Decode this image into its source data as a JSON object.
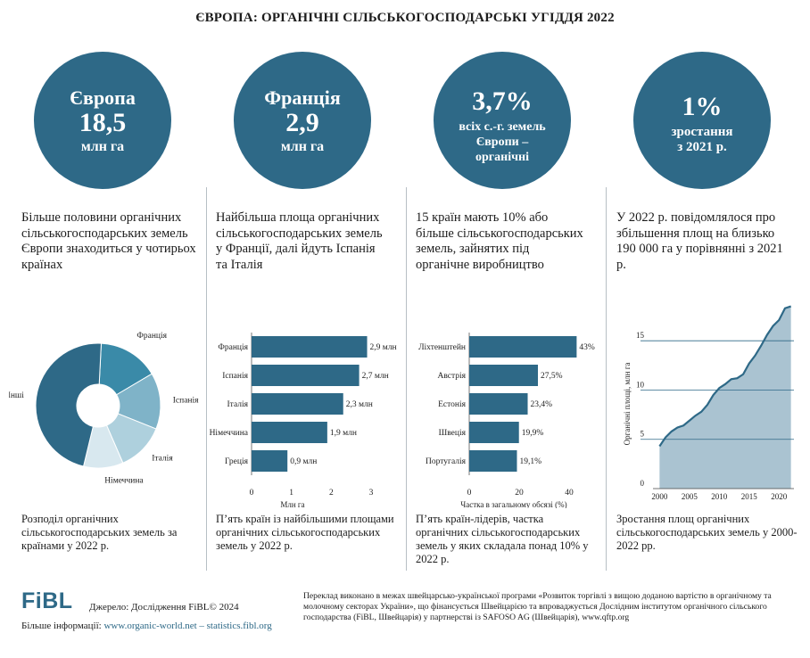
{
  "title": "ЄВРОПА: ОРГАНІЧНІ СІЛЬСЬКОГОСПОДАРСЬКІ УГІДДЯ 2022",
  "panels": [
    {
      "circle": {
        "l1": "Європа",
        "l2": "18,5",
        "l3": "млн га"
      },
      "desc": "Більше половини органічних сільськогосподарських земель Європи знаходиться у чотирьох країнах",
      "caption": "Розподіл органічних сільськогосподарських земель за країнами у 2022 р."
    },
    {
      "circle": {
        "l1": "Франція",
        "l2": "2,9",
        "l3": "млн га"
      },
      "desc": "Найбільша площа органічних сільськогосподарських земель у Франції, далі йдуть Іспанія та Італія",
      "caption": "П’ять країн із найбільшими площами органічних сільськогосподарських земель у 2022 р."
    },
    {
      "circle": {
        "l1": "3,7%",
        "l2": "всіх с.-г. земель",
        "l3": "Європи –",
        "l4": "органічні"
      },
      "desc": "15 країн мають 10% або більше сільськогосподарських земель, зайнятих під органічне виробництво",
      "caption": "П’ять країн-лідерів, частка органічних сільськогосподарських земель у яких складала понад 10% у 2022 р."
    },
    {
      "circle": {
        "l1": "1%",
        "l2": "зростання",
        "l3": "з 2021 р."
      },
      "desc": "У 2022 р. повідомлялося про збільшення площ на близько 190 000 га у порівнянні з 2021 р.",
      "caption": "Зростання площ органічних сільськогосподарських земель у 2000-2022 рр."
    }
  ],
  "chart_data": [
    {
      "type": "pie",
      "title": "Розподіл органічних сільськогосподарських земель за країнами у 2022 р.",
      "labels": [
        "Франція",
        "Іспанія",
        "Італія",
        "Німеччина",
        "Інші"
      ],
      "values": [
        2.9,
        2.7,
        2.3,
        1.9,
        8.7
      ],
      "colors": [
        "#3a8aa8",
        "#7fb3c8",
        "#aed0dd",
        "#d8e8ef",
        "#2e6987"
      ]
    },
    {
      "type": "bar",
      "orientation": "horizontal",
      "categories": [
        "Франція",
        "Іспанія",
        "Італія",
        "Німеччина",
        "Греція"
      ],
      "values": [
        2.9,
        2.7,
        2.3,
        1.9,
        0.9
      ],
      "value_labels": [
        "2,9 млн",
        "2,7 млн",
        "2,3 млн",
        "1,9 млн",
        "0,9 млн"
      ],
      "xlabel": "Млн га",
      "xlim": [
        0,
        3
      ],
      "ticks": [
        0,
        1,
        2,
        3
      ]
    },
    {
      "type": "bar",
      "orientation": "horizontal",
      "categories": [
        "Ліхтенштейн",
        "Австрія",
        "Естонія",
        "Швеція",
        "Португалія"
      ],
      "values": [
        43,
        27.5,
        23.4,
        19.9,
        19.1
      ],
      "value_labels": [
        "43%",
        "27,5%",
        "23,4%",
        "19,9%",
        "19,1%"
      ],
      "xlabel": "Частка в загальному обсязі (%)",
      "xlim": [
        0,
        45
      ],
      "ticks": [
        0,
        20,
        40
      ]
    },
    {
      "type": "area",
      "x": [
        2000,
        2001,
        2002,
        2003,
        2004,
        2005,
        2006,
        2007,
        2008,
        2009,
        2010,
        2011,
        2012,
        2013,
        2014,
        2015,
        2016,
        2017,
        2018,
        2019,
        2020,
        2021,
        2022
      ],
      "y": [
        4.3,
        5.2,
        5.8,
        6.2,
        6.4,
        6.9,
        7.4,
        7.8,
        8.5,
        9.5,
        10.2,
        10.6,
        11.1,
        11.2,
        11.6,
        12.7,
        13.5,
        14.5,
        15.6,
        16.5,
        17.1,
        18.3,
        18.5
      ],
      "ylabel": "Органічні площі, млн га",
      "xticks": [
        2000,
        2005,
        2010,
        2015,
        2020
      ],
      "yticks": [
        0,
        5,
        10,
        15
      ],
      "xlim": [
        1999.5,
        2022.5
      ],
      "ylim": [
        0,
        19
      ]
    }
  ],
  "footer": {
    "logo": "FiBL",
    "source": "Джерело: Дослідження FiBL© 2024",
    "more_label": "Більше інформації:",
    "more_links": "www.organic-world.net – statistics.fibl.org",
    "note": "Переклад виконано в межах швейцарсько-української програми «Розвиток торгівлі з вищою доданою вартістю в органічному та молочному секторах України», що фінансується Швейцарією та впроваджується Дослідним інститутом органічного сільського господарства (FiBL, Швейцарія) у партнерстві із SAFOSO AG (Швейцарія), www.qftp.org"
  },
  "colors": {
    "accent": "#2e6987",
    "area": "#aac3d1",
    "grid": "#2e6987"
  }
}
